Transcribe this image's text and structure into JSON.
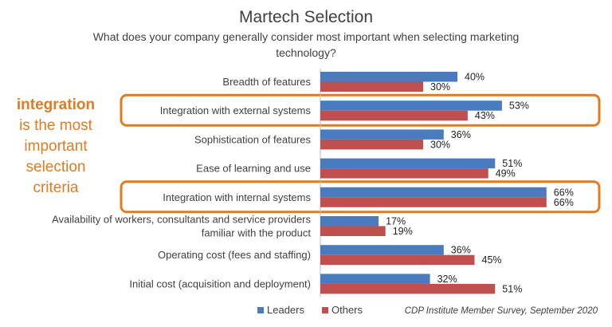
{
  "chart_data": {
    "type": "bar",
    "orientation": "horizontal",
    "title": "Martech Selection",
    "subtitle_lines": [
      "What does your company generally consider most important when selecting marketing",
      "technology?"
    ],
    "categories": [
      [
        "Breadth of features"
      ],
      [
        "Integration with external systems"
      ],
      [
        "Sophistication of features"
      ],
      [
        "Ease of learning and use"
      ],
      [
        "Integration with internal systems"
      ],
      [
        "Availability of workers,  consultants and service providers",
        "familiar with the product"
      ],
      [
        "Operating cost (fees and staffing)"
      ],
      [
        "Initial cost (acquisition and deployment)"
      ]
    ],
    "series": [
      {
        "name": "Leaders",
        "color": "#4a7bbf",
        "values": [
          40,
          53,
          36,
          51,
          66,
          17,
          36,
          32
        ]
      },
      {
        "name": "Others",
        "color": "#c0504d",
        "values": [
          30,
          43,
          30,
          49,
          66,
          19,
          45,
          51
        ]
      }
    ],
    "value_suffix": "%",
    "xlim": [
      0,
      100
    ],
    "legend_position": "bottom",
    "highlighted_categories": [
      1,
      4
    ],
    "highlight_color": "#e07b22",
    "source": "CDP Institute Member Survey, September 2020"
  },
  "callout": {
    "strong": "integration",
    "lines": [
      "is the most",
      "important",
      "selection",
      "criteria"
    ]
  }
}
